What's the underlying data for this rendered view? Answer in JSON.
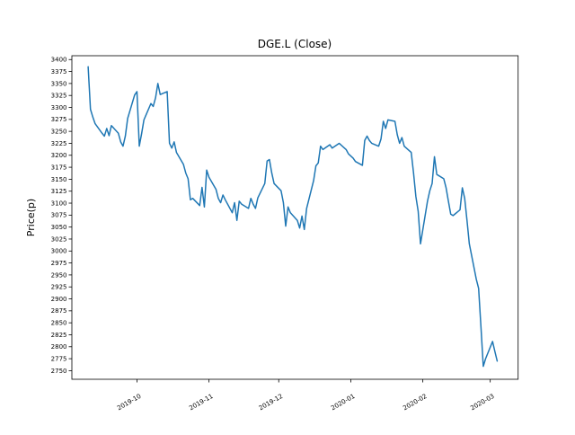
{
  "chart_data": {
    "type": "line",
    "title": "DGE.L (Close)",
    "ylabel": "Price(p)",
    "xlabel": "",
    "grid": false,
    "legend": "none",
    "line_color": "#1f77b4",
    "background_color": "#ffffff",
    "ylim": [
      2732,
      3408
    ],
    "xlim": [
      "2019-09-03",
      "2020-03-13"
    ],
    "ytick_values": [
      2750,
      2775,
      2800,
      2825,
      2850,
      2875,
      2900,
      2925,
      2950,
      2975,
      3000,
      3025,
      3050,
      3075,
      3100,
      3125,
      3150,
      3175,
      3200,
      3225,
      3250,
      3275,
      3300,
      3325,
      3350,
      3375,
      3400
    ],
    "xticks": [
      {
        "label": "2019-10",
        "date": "2019-10-01"
      },
      {
        "label": "2019-11",
        "date": "2019-11-01"
      },
      {
        "label": "2019-12",
        "date": "2019-12-01"
      },
      {
        "label": "2020-01",
        "date": "2020-01-01"
      },
      {
        "label": "2020-02",
        "date": "2020-02-01"
      },
      {
        "label": "2020-03",
        "date": "2020-03-01"
      }
    ],
    "xtick_rotation_deg": 30,
    "series": [
      {
        "name": "Close",
        "color": "#1f77b4",
        "x": [
          "2019-09-10",
          "2019-09-11",
          "2019-09-12",
          "2019-09-13",
          "2019-09-16",
          "2019-09-17",
          "2019-09-18",
          "2019-09-19",
          "2019-09-20",
          "2019-09-23",
          "2019-09-24",
          "2019-09-25",
          "2019-09-26",
          "2019-09-27",
          "2019-09-30",
          "2019-10-01",
          "2019-10-02",
          "2019-10-03",
          "2019-10-04",
          "2019-10-07",
          "2019-10-08",
          "2019-10-09",
          "2019-10-10",
          "2019-10-11",
          "2019-10-14",
          "2019-10-15",
          "2019-10-16",
          "2019-10-17",
          "2019-10-18",
          "2019-10-21",
          "2019-10-22",
          "2019-10-23",
          "2019-10-24",
          "2019-10-25",
          "2019-10-28",
          "2019-10-29",
          "2019-10-30",
          "2019-10-31",
          "2019-11-01",
          "2019-11-04",
          "2019-11-05",
          "2019-11-06",
          "2019-11-07",
          "2019-11-08",
          "2019-11-11",
          "2019-11-12",
          "2019-11-13",
          "2019-11-14",
          "2019-11-15",
          "2019-11-18",
          "2019-11-19",
          "2019-11-20",
          "2019-11-21",
          "2019-11-22",
          "2019-11-25",
          "2019-11-26",
          "2019-11-27",
          "2019-11-28",
          "2019-11-29",
          "2019-12-02",
          "2019-12-03",
          "2019-12-04",
          "2019-12-05",
          "2019-12-06",
          "2019-12-09",
          "2019-12-10",
          "2019-12-11",
          "2019-12-12",
          "2019-12-13",
          "2019-12-16",
          "2019-12-17",
          "2019-12-18",
          "2019-12-19",
          "2019-12-20",
          "2019-12-23",
          "2019-12-24",
          "2019-12-27",
          "2019-12-30",
          "2019-12-31",
          "2020-01-02",
          "2020-01-03",
          "2020-01-06",
          "2020-01-07",
          "2020-01-08",
          "2020-01-09",
          "2020-01-10",
          "2020-01-13",
          "2020-01-14",
          "2020-01-15",
          "2020-01-16",
          "2020-01-17",
          "2020-01-20",
          "2020-01-21",
          "2020-01-22",
          "2020-01-23",
          "2020-01-24",
          "2020-01-27",
          "2020-01-28",
          "2020-01-29",
          "2020-01-30",
          "2020-01-31",
          "2020-02-03",
          "2020-02-04",
          "2020-02-05",
          "2020-02-06",
          "2020-02-07",
          "2020-02-10",
          "2020-02-11",
          "2020-02-12",
          "2020-02-13",
          "2020-02-14",
          "2020-02-17",
          "2020-02-18",
          "2020-02-19",
          "2020-02-20",
          "2020-02-21",
          "2020-02-24",
          "2020-02-25",
          "2020-02-26",
          "2020-02-27",
          "2020-02-28",
          "2020-03-02",
          "2020-03-03",
          "2020-03-04"
        ],
        "y": [
          3385,
          3296,
          3280,
          3266,
          3246,
          3240,
          3256,
          3241,
          3262,
          3246,
          3228,
          3219,
          3240,
          3277,
          3326,
          3333,
          3219,
          3245,
          3274,
          3308,
          3302,
          3320,
          3350,
          3327,
          3333,
          3225,
          3215,
          3228,
          3206,
          3181,
          3163,
          3151,
          3107,
          3110,
          3095,
          3133,
          3092,
          3169,
          3154,
          3129,
          3110,
          3101,
          3117,
          3107,
          3080,
          3101,
          3064,
          3104,
          3098,
          3089,
          3110,
          3098,
          3089,
          3111,
          3141,
          3188,
          3191,
          3163,
          3141,
          3126,
          3101,
          3052,
          3092,
          3080,
          3064,
          3048,
          3073,
          3045,
          3089,
          3147,
          3178,
          3184,
          3219,
          3212,
          3222,
          3215,
          3225,
          3212,
          3203,
          3194,
          3187,
          3179,
          3231,
          3240,
          3231,
          3225,
          3219,
          3234,
          3271,
          3256,
          3274,
          3271,
          3243,
          3225,
          3237,
          3219,
          3206,
          3163,
          3114,
          3083,
          3015,
          3104,
          3126,
          3141,
          3197,
          3160,
          3151,
          3132,
          3104,
          3077,
          3074,
          3086,
          3132,
          3110,
          3064,
          3015,
          2941,
          2922,
          2842,
          2759,
          2775,
          2811,
          2790,
          2770
        ]
      }
    ]
  }
}
